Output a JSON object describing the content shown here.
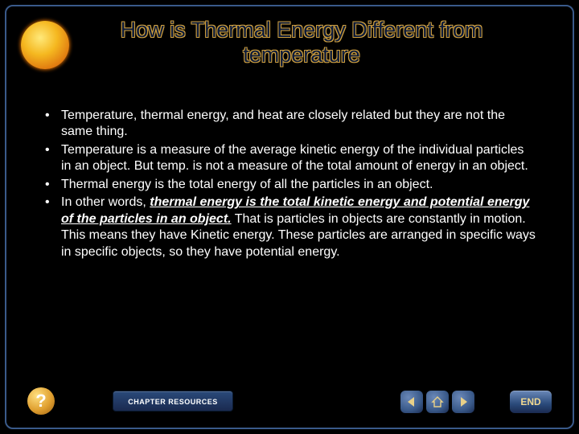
{
  "colors": {
    "background": "#000000",
    "frame_border": "#3a5a8a",
    "title_fill": "#0b1a3a",
    "title_outline": "#cfa040",
    "body_text": "#ffffff",
    "sun_gradient": [
      "#ffe97a",
      "#f5b820",
      "#e07a10",
      "#b84800"
    ],
    "button_blue": [
      "#6a88b8",
      "#3a5a8a",
      "#1a2a50"
    ],
    "button_gold": [
      "#ffe080",
      "#e0a030",
      "#a06010"
    ],
    "accent_gold": "#e8d088"
  },
  "typography": {
    "title_fontsize_pt": 20,
    "body_fontsize_pt": 12,
    "font_family": "Arial"
  },
  "title": {
    "line1": "How is Thermal Energy Different from",
    "line2": "temperature"
  },
  "bullets": [
    {
      "runs": [
        {
          "t": "Temperature, thermal energy, and heat are closely related but they are not the same thing."
        }
      ]
    },
    {
      "runs": [
        {
          "t": "Temperature is a measure of the average kinetic energy of the individual particles in an object. But temp. is not a measure of the total  amount  of energy in an object."
        }
      ]
    },
    {
      "runs": [
        {
          "t": "Thermal energy is the total energy of all the particles in an object."
        }
      ]
    },
    {
      "runs": [
        {
          "t": "In other words, "
        },
        {
          "t": "thermal energy is the total kinetic energy and potential energy of the particles in an object.",
          "bi": true,
          "ud": true
        },
        {
          "t": " That is particles in objects are constantly in motion. This means they have Kinetic energy. These particles are arranged in specific ways in specific objects, so they have potential energy."
        }
      ]
    }
  ],
  "footer": {
    "help_label": "?",
    "chapter_resources_label": "CHAPTER RESOURCES",
    "end_label": "END",
    "nav": {
      "prev": "previous",
      "home": "home",
      "next": "next"
    }
  }
}
